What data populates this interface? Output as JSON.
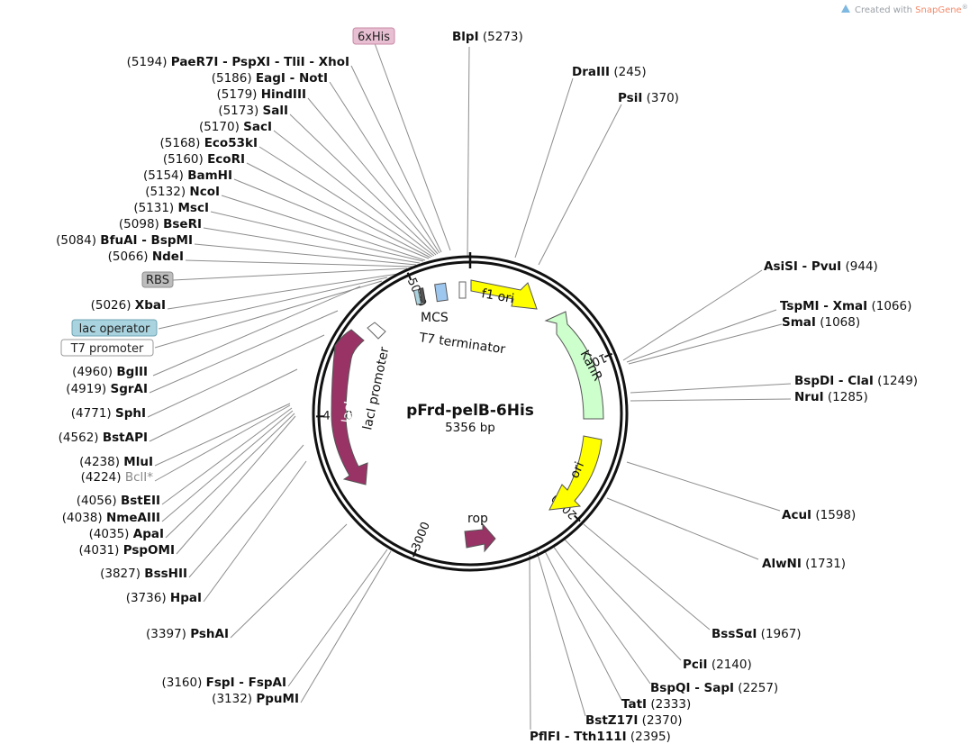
{
  "credit": {
    "prefix": "Created with ",
    "brand": "SnapGene",
    "mark": "®",
    "brand_color": "#f48a6a"
  },
  "plasmid": {
    "name": "pFrd-pelB-6His",
    "size_label": "5356 bp",
    "length": 5356
  },
  "ticks": [
    {
      "bp": 1000,
      "label": "1000"
    },
    {
      "bp": 2000,
      "label": "2000"
    },
    {
      "bp": 3000,
      "label": "3000"
    },
    {
      "bp": 4000,
      "label": "4000"
    },
    {
      "bp": 5000,
      "label": "5000"
    }
  ],
  "features": [
    {
      "name": "f1 ori",
      "color": "#ffff00"
    },
    {
      "name": "KanR",
      "color": "#ccffcc"
    },
    {
      "name": "ori",
      "color": "#ffff00"
    },
    {
      "name": "rop",
      "color": "#993366"
    },
    {
      "name": "lacI",
      "color": "#993366"
    },
    {
      "name": "lacI promoter",
      "color": "#ffffff"
    },
    {
      "name": "MCS",
      "color": "#ffffff"
    },
    {
      "name": "T7 terminator",
      "color": "#ffffff"
    }
  ],
  "tags": [
    {
      "name": "6xHis",
      "bg": "#e8bfd2",
      "border": "#c98aa6"
    },
    {
      "name": "RBS",
      "bg": "#bdbdbd",
      "border": "#8f8f8f"
    },
    {
      "name": "lac operator",
      "bg": "#a9d3df",
      "border": "#6fa4b4"
    },
    {
      "name": "T7 promoter",
      "bg": "#ffffff",
      "border": "#999999"
    }
  ],
  "sites_left": [
    {
      "pos": "(5194)",
      "name": "PaeR7I - PspXI - TliI - XhoI"
    },
    {
      "pos": "(5186)",
      "name": "EagI - NotI"
    },
    {
      "pos": "(5179)",
      "name": "HindIII"
    },
    {
      "pos": "(5173)",
      "name": "SalI"
    },
    {
      "pos": "(5170)",
      "name": "SacI"
    },
    {
      "pos": "(5168)",
      "name": "Eco53kI"
    },
    {
      "pos": "(5160)",
      "name": "EcoRI"
    },
    {
      "pos": "(5154)",
      "name": "BamHI"
    },
    {
      "pos": "(5132)",
      "name": "NcoI"
    },
    {
      "pos": "(5131)",
      "name": "MscI"
    },
    {
      "pos": "(5098)",
      "name": "BseRI"
    },
    {
      "pos": "(5084)",
      "name": "BfuAI - BspMI"
    },
    {
      "pos": "(5066)",
      "name": "NdeI"
    },
    {
      "pos": "(5026)",
      "name": "XbaI"
    },
    {
      "pos": "(4960)",
      "name": "BglII"
    },
    {
      "pos": "(4919)",
      "name": "SgrAI"
    },
    {
      "pos": "(4771)",
      "name": "SphI"
    },
    {
      "pos": "(4562)",
      "name": "BstAPI"
    },
    {
      "pos": "(4238)",
      "name": "MluI"
    },
    {
      "pos": "(4224)",
      "name": "BclI*"
    },
    {
      "pos": "(4056)",
      "name": "BstEII"
    },
    {
      "pos": "(4038)",
      "name": "NmeAIII"
    },
    {
      "pos": "(4035)",
      "name": "ApaI"
    },
    {
      "pos": "(4031)",
      "name": "PspOMI"
    },
    {
      "pos": "(3827)",
      "name": "BssHII"
    },
    {
      "pos": "(3736)",
      "name": "HpaI"
    },
    {
      "pos": "(3397)",
      "name": "PshAI"
    },
    {
      "pos": "(3160)",
      "name": "FspI - FspAI"
    },
    {
      "pos": "(3132)",
      "name": "PpuMI"
    }
  ],
  "sites_right": [
    {
      "name": "BlpI",
      "pos": "(5273)"
    },
    {
      "name": "DraIII",
      "pos": "(245)"
    },
    {
      "name": "PsiI",
      "pos": "(370)"
    },
    {
      "name": "AsiSI - PvuI",
      "pos": "(944)"
    },
    {
      "name": "TspMI - XmaI",
      "pos": "(1066)"
    },
    {
      "name": "SmaI",
      "pos": "(1068)"
    },
    {
      "name": "BspDI - ClaI",
      "pos": "(1249)"
    },
    {
      "name": "NruI",
      "pos": "(1285)"
    },
    {
      "name": "AcuI",
      "pos": "(1598)"
    },
    {
      "name": "AlwNI",
      "pos": "(1731)"
    },
    {
      "name": "BssSαI",
      "pos": "(1967)"
    },
    {
      "name": "PciI",
      "pos": "(2140)"
    },
    {
      "name": "BspQI - SapI",
      "pos": "(2257)"
    },
    {
      "name": "TatI",
      "pos": "(2333)"
    },
    {
      "name": "BstZ17I",
      "pos": "(2370)"
    },
    {
      "name": "PflFI - Tth111I",
      "pos": "(2395)"
    }
  ]
}
